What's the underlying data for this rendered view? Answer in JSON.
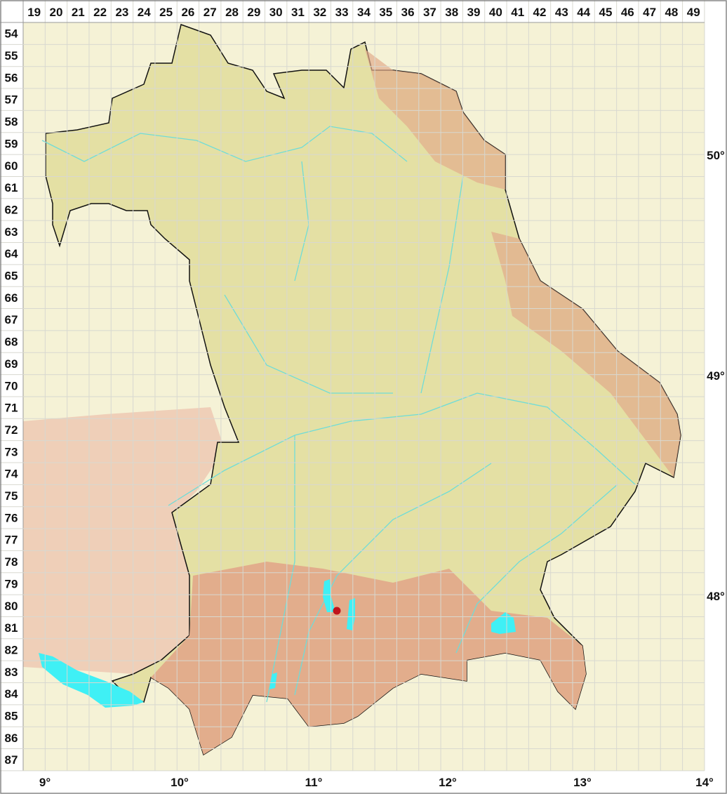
{
  "grid": {
    "columns": [
      "19",
      "20",
      "21",
      "22",
      "23",
      "24",
      "25",
      "26",
      "27",
      "28",
      "29",
      "30",
      "31",
      "32",
      "33",
      "34",
      "35",
      "36",
      "37",
      "38",
      "39",
      "40",
      "41",
      "42",
      "43",
      "44",
      "45",
      "46",
      "47",
      "48",
      "49"
    ],
    "rows": [
      "54",
      "55",
      "56",
      "57",
      "58",
      "59",
      "60",
      "61",
      "62",
      "63",
      "64",
      "65",
      "66",
      "67",
      "68",
      "69",
      "70",
      "71",
      "72",
      "73",
      "74",
      "75",
      "76",
      "77",
      "78",
      "79",
      "80",
      "81",
      "82",
      "83",
      "84",
      "85",
      "86",
      "87"
    ]
  },
  "longitude_labels": [
    "9°",
    "10°",
    "11°",
    "12°",
    "13°",
    "14°"
  ],
  "latitude_labels": [
    "50°",
    "49°",
    "48°"
  ],
  "colors": {
    "outside": "#f5f2d6",
    "lowland": "#e4e0a4",
    "upland": "#ece7b8",
    "highland": "#e2ad8c",
    "water": "#3ff0f5",
    "rivers": "#6fdcd8",
    "occurrence": "#c0141c",
    "grid": "#d8d8d0",
    "border": "#111111"
  },
  "occurrence_marker": {
    "column": "33",
    "row": "80"
  }
}
